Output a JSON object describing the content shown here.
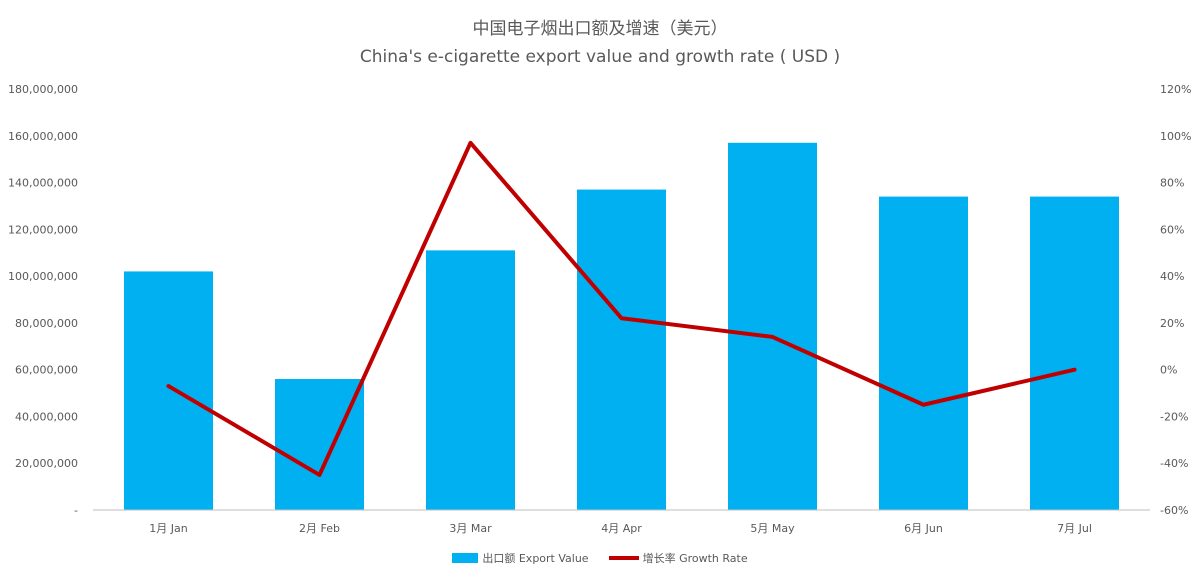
{
  "colors": {
    "bar": "#00B0F0",
    "line": "#C00000",
    "axis": "#BFBFBF",
    "text": "#595959"
  },
  "chart_data": {
    "type": "bar+line",
    "title": "中国电子烟出口额及增速（美元）",
    "subtitle": "China's e-cigarette export value and growth rate ( USD )",
    "categories": [
      "1月 Jan",
      "2月 Feb",
      "3月 Mar",
      "4月 Apr",
      "5月 May",
      "6月 Jun",
      "7月 Jul"
    ],
    "series": [
      {
        "name": "出口额 Export Value",
        "type": "bar",
        "axis": "left",
        "values": [
          102000000,
          56000000,
          111000000,
          137000000,
          157000000,
          134000000,
          134000000
        ]
      },
      {
        "name": "增长率 Growth Rate",
        "type": "line",
        "axis": "right",
        "values": [
          -7,
          -45,
          97,
          22,
          14,
          -15,
          0
        ]
      }
    ],
    "y_left": {
      "ylim": [
        0,
        180000000
      ],
      "tick_labels": [
        "-",
        "20,000,000",
        "40,000,000",
        "60,000,000",
        "80,000,000",
        "100,000,000",
        "120,000,000",
        "140,000,000",
        "160,000,000",
        "180,000,000"
      ]
    },
    "y_right": {
      "ylim": [
        -60,
        120
      ],
      "unit": "%",
      "tick_labels": [
        "-60%",
        "-40%",
        "-20%",
        "0%",
        "20%",
        "40%",
        "60%",
        "80%",
        "100%",
        "120%"
      ]
    },
    "grid": false,
    "legend": "bottom-center"
  }
}
